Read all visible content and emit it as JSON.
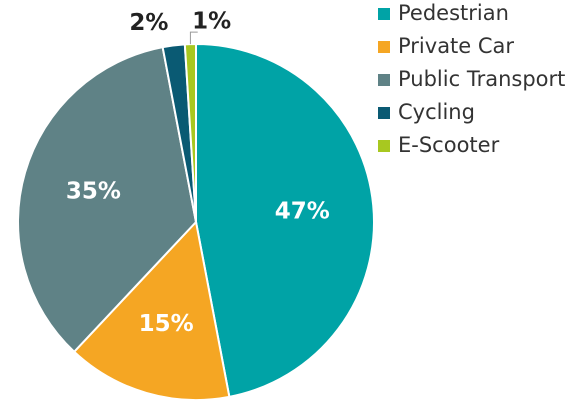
{
  "chart_data": {
    "type": "pie",
    "categories": [
      "Pedestrian",
      "Private Car",
      "Public Transport",
      "Cycling",
      "E-Scooter"
    ],
    "values": [
      47,
      15,
      35,
      2,
      1
    ],
    "value_labels": [
      "47%",
      "15%",
      "35%",
      "2%",
      "1%"
    ],
    "colors": [
      "#00a3a6",
      "#f5a623",
      "#5f8286",
      "#0a5a73",
      "#a8c820"
    ],
    "legend": "right"
  }
}
